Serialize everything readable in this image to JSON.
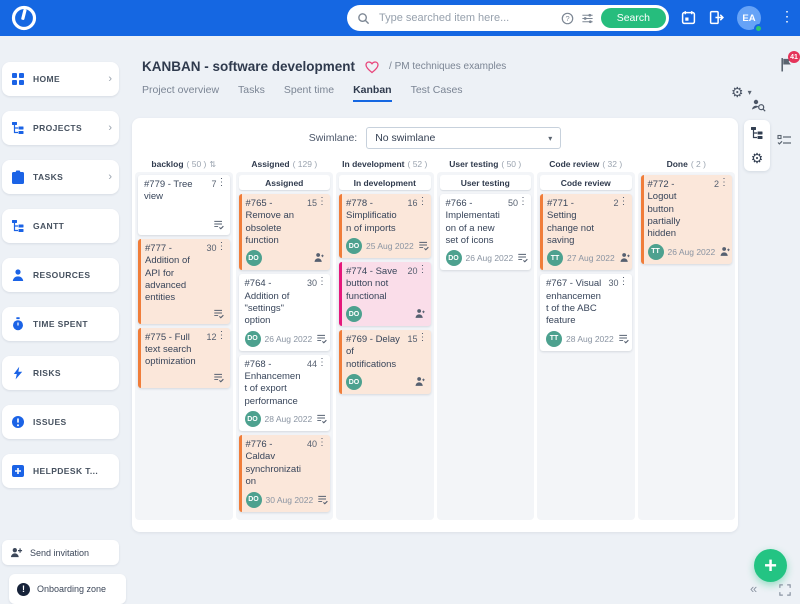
{
  "topbar": {
    "search_placeholder": "Type searched item here...",
    "search_button": "Search",
    "avatar_initials": "EA"
  },
  "sidebar": {
    "items": [
      {
        "label": "HOME",
        "icon": "home-icon",
        "chevron": true
      },
      {
        "label": "PROJECTS",
        "icon": "projects-tree-icon",
        "chevron": true
      },
      {
        "label": "TASKS",
        "icon": "clipboard-icon",
        "chevron": true
      },
      {
        "label": "GANTT",
        "icon": "gantt-tree-icon",
        "chevron": false
      },
      {
        "label": "RESOURCES",
        "icon": "person-icon",
        "chevron": false
      },
      {
        "label": "TIME SPENT",
        "icon": "stopwatch-icon",
        "chevron": false
      },
      {
        "label": "RISKS",
        "icon": "lightning-icon",
        "chevron": false
      },
      {
        "label": "ISSUES",
        "icon": "issue-icon",
        "chevron": false
      },
      {
        "label": "HELPDESK T...",
        "icon": "helpdesk-plus-icon",
        "chevron": false
      }
    ],
    "send_invitation": "Send invitation",
    "onboarding_zone": "Onboarding zone"
  },
  "header": {
    "title": "KANBAN - software development",
    "breadcrumb": "/ PM techniques examples",
    "notifications_badge": "41",
    "tabs": [
      {
        "label": "Project overview",
        "active": false
      },
      {
        "label": "Tasks",
        "active": false
      },
      {
        "label": "Spent time",
        "active": false
      },
      {
        "label": "Kanban",
        "active": true
      },
      {
        "label": "Test Cases",
        "active": false
      }
    ]
  },
  "board": {
    "swimlane_label": "Swimlane:",
    "swimlane_value": "No swimlane",
    "columns": [
      {
        "title": "backlog",
        "count": "( 50 )",
        "sortable": true,
        "group_header": "",
        "cards": [
          {
            "title": "#779 - Tree view",
            "points": "7",
            "variant": "white",
            "footer_icon": "tasklist-check-icon"
          },
          {
            "title": "#777 - Addition of API for advanced entities",
            "points": "30",
            "variant": "peach",
            "footer_icon": "tasklist-check-icon"
          },
          {
            "title": "#775 - Full text search optimization",
            "points": "12",
            "variant": "peach",
            "footer_icon": "tasklist-check-icon"
          }
        ]
      },
      {
        "title": "Assigned",
        "count": "( 129 )",
        "sortable": false,
        "group_header": "Assigned",
        "cards": [
          {
            "title": "#765 - Remove an obsolete function",
            "points": "15",
            "variant": "peach",
            "avatar": "DO",
            "footer_icon": "person-small-icon"
          },
          {
            "title": "#764 - Addition of \"settings\" option",
            "points": "30",
            "variant": "white",
            "avatar": "DO",
            "date": "26 Aug 2022",
            "footer_icon": "tasklist-check-icon"
          },
          {
            "title": "#768 - Enhancement of export performance",
            "points": "44",
            "variant": "white",
            "avatar": "DO",
            "date": "28 Aug 2022",
            "footer_icon": "tasklist-check-icon"
          },
          {
            "title": "#776 - Caldav synchronization",
            "points": "40",
            "variant": "peach",
            "avatar": "DO",
            "date": "30 Aug 2022",
            "footer_icon": "tasklist-check-icon"
          }
        ]
      },
      {
        "title": "In development",
        "count": "( 52 )",
        "sortable": false,
        "group_header": "In development",
        "cards": [
          {
            "title": "#778 - Simplification of imports",
            "points": "16",
            "variant": "peach",
            "avatar": "DO",
            "date": "25 Aug 2022",
            "footer_icon": "tasklist-check-icon"
          },
          {
            "title": "#774 - Save button not functional",
            "points": "20",
            "variant": "pink",
            "avatar": "DO",
            "footer_icon": "person-small-icon"
          },
          {
            "title": "#769 - Delay of notifications",
            "points": "15",
            "variant": "peach",
            "avatar": "DO",
            "footer_icon": "person-small-icon"
          }
        ]
      },
      {
        "title": "User testing",
        "count": "( 50 )",
        "sortable": false,
        "group_header": "User testing",
        "cards": [
          {
            "title": "#766 - Implementation of a new set of icons",
            "points": "50",
            "variant": "white",
            "avatar": "DO",
            "date": "26 Aug 2022",
            "footer_icon": "tasklist-check-icon"
          }
        ]
      },
      {
        "title": "Code review",
        "count": "( 32 )",
        "sortable": false,
        "group_header": "Code review",
        "cards": [
          {
            "title": "#771 - Setting change not saving",
            "points": "2",
            "variant": "peach",
            "avatar": "TT",
            "date": "27 Aug 2022",
            "footer_icon": "person-small-icon"
          },
          {
            "title": "#767 - Visual enhancement of the ABC feature",
            "points": "30",
            "variant": "white",
            "avatar": "TT",
            "date": "28 Aug 2022",
            "footer_icon": "tasklist-check-icon"
          }
        ]
      },
      {
        "title": "Done",
        "count": "( 2 )",
        "sortable": false,
        "group_header": "",
        "cards": [
          {
            "title": "#772 - Logout button partially hidden",
            "points": "2",
            "variant": "peach",
            "avatar": "TT",
            "date": "26 Aug 2022",
            "footer_icon": "person-small-icon"
          }
        ]
      }
    ]
  },
  "colors": {
    "topbar_blue": "#1567e2",
    "action_green": "#26bd7d",
    "peach_card_bg": "#fbe7da",
    "peach_card_border": "#f07d3a",
    "pink_card_bg": "#fadde9",
    "pink_card_border": "#e5177b",
    "avatar_teal": "#4da18f",
    "badge_red": "#e5345a"
  },
  "icons": {
    "logo-icon": "power-ring",
    "search-icon": "magnifier",
    "help-icon": "question-circle",
    "filter-sliders-icon": "tune",
    "calendar-icon": "calendar",
    "logout-icon": "exit-door",
    "kebab-menu-icon": "vertical-dots",
    "flag-icon": "flag",
    "gear-icon": "gear",
    "person-search-icon": "person-magnifier",
    "tree-icon": "hierarchy",
    "checklist-icon": "checked-list",
    "heart-icon": "heart-outline",
    "sort-icon": "up-down-arrows",
    "plus-icon": "plus",
    "collapse-icon": "double-chevron-left",
    "expand-icon": "fullscreen-corners"
  }
}
